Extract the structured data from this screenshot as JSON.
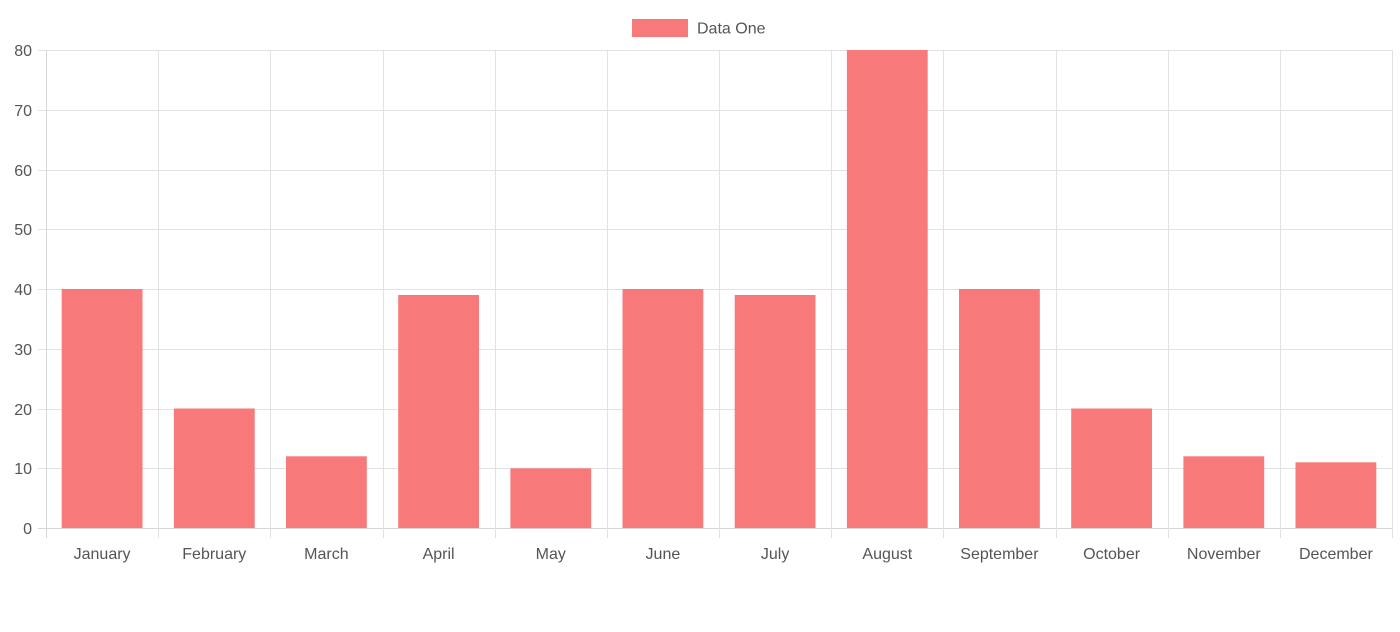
{
  "chart_data": {
    "type": "bar",
    "categories": [
      "January",
      "February",
      "March",
      "April",
      "May",
      "June",
      "July",
      "August",
      "September",
      "October",
      "November",
      "December"
    ],
    "series": [
      {
        "name": "Data One",
        "values": [
          40,
          20,
          12,
          39,
          10,
          40,
          39,
          80,
          40,
          20,
          12,
          11
        ],
        "color": "#f87979"
      }
    ],
    "title": "",
    "xlabel": "",
    "ylabel": "",
    "ylim": [
      0,
      80
    ],
    "yticks": [
      0,
      10,
      20,
      30,
      40,
      50,
      60,
      70,
      80
    ],
    "grid": true,
    "legend_position": "top-center"
  }
}
